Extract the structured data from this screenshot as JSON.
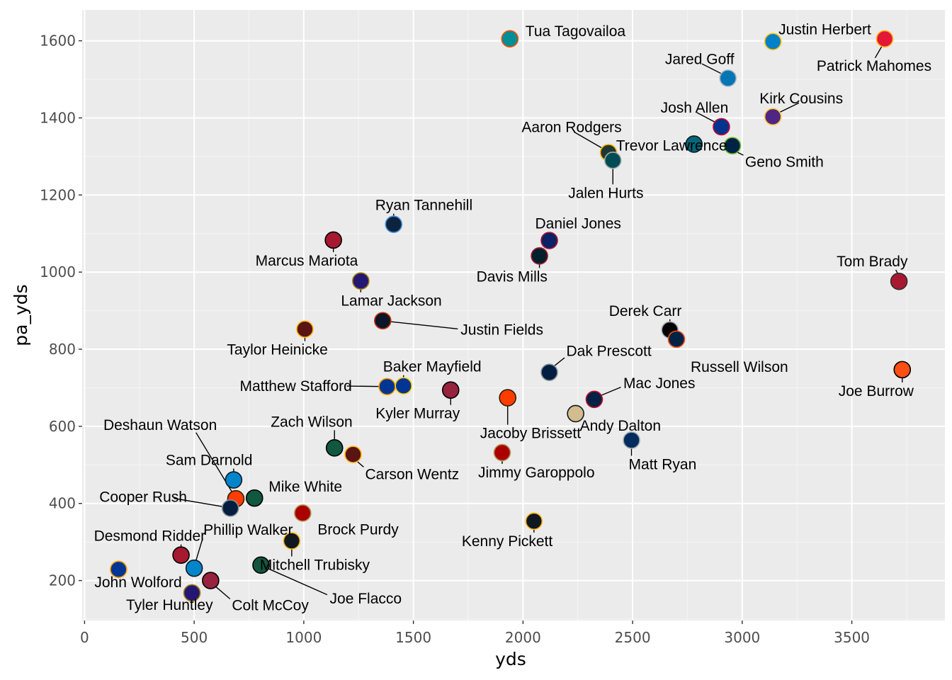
{
  "chart_data": {
    "type": "scatter",
    "xlabel": "yds",
    "ylabel": "pa_yds",
    "xlim": [
      0,
      3800
    ],
    "ylim": [
      100,
      1680
    ],
    "x_ticks": [
      0,
      500,
      1000,
      1500,
      2000,
      2500,
      3000,
      3500
    ],
    "y_ticks": [
      200,
      400,
      600,
      800,
      1000,
      1200,
      1400,
      1600
    ],
    "grid": true,
    "legend": "none",
    "background": "#ebebeb",
    "points": [
      {
        "name": "Tua Tagovailoa",
        "x": 1940,
        "y": 1605,
        "color": "#008E97",
        "edge": "#FC4C02"
      },
      {
        "name": "Justin Herbert",
        "x": 3140,
        "y": 1598,
        "color": "#0080C6",
        "edge": "#FFC20E"
      },
      {
        "name": "Patrick Mahomes",
        "x": 3650,
        "y": 1605,
        "color": "#E31837",
        "edge": "#FFB81C"
      },
      {
        "name": "Jared Goff",
        "x": 2935,
        "y": 1503,
        "color": "#0076B6",
        "edge": "#B0B7BC"
      },
      {
        "name": "Kirk Cousins",
        "x": 3140,
        "y": 1403,
        "color": "#4F2683",
        "edge": "#FFC62F"
      },
      {
        "name": "Josh Allen",
        "x": 2905,
        "y": 1377,
        "color": "#00338D",
        "edge": "#C60C30"
      },
      {
        "name": "Aaron Rodgers",
        "x": 2390,
        "y": 1310,
        "color": "#203731",
        "edge": "#FFB612"
      },
      {
        "name": "Trevor Lawrence",
        "x": 2780,
        "y": 1332,
        "color": "#006778",
        "edge": "#101820"
      },
      {
        "name": "Geno Smith",
        "x": 2955,
        "y": 1328,
        "color": "#002244",
        "edge": "#69BE28"
      },
      {
        "name": "Jalen Hurts",
        "x": 2410,
        "y": 1290,
        "color": "#004C54",
        "edge": "#A5ACAF"
      },
      {
        "name": "Ryan Tannehill",
        "x": 1410,
        "y": 1124,
        "color": "#0C2340",
        "edge": "#4B92DB"
      },
      {
        "name": "Daniel Jones",
        "x": 2120,
        "y": 1082,
        "color": "#0B2265",
        "edge": "#A71930"
      },
      {
        "name": "Marcus Mariota",
        "x": 1135,
        "y": 1083,
        "color": "#A71930",
        "edge": "#000000"
      },
      {
        "name": "Davis Mills",
        "x": 2075,
        "y": 1042,
        "color": "#03202F",
        "edge": "#A71930"
      },
      {
        "name": "Tom Brady",
        "x": 3715,
        "y": 976,
        "color": "#A71930",
        "edge": "#322F2B"
      },
      {
        "name": "Lamar Jackson",
        "x": 1260,
        "y": 977,
        "color": "#241773",
        "edge": "#9E7C0C"
      },
      {
        "name": "Justin Fields",
        "x": 1360,
        "y": 874,
        "color": "#0B162A",
        "edge": "#C83803"
      },
      {
        "name": "Taylor Heinicke",
        "x": 1005,
        "y": 852,
        "color": "#5A1414",
        "edge": "#FFB612"
      },
      {
        "name": "Derek Carr",
        "x": 2670,
        "y": 850,
        "color": "#000000",
        "edge": "#A5ACAF"
      },
      {
        "name": "Russell Wilson",
        "x": 2700,
        "y": 826,
        "color": "#002244",
        "edge": "#FB4F14"
      },
      {
        "name": "Joe Burrow",
        "x": 3730,
        "y": 747,
        "color": "#FB4F14",
        "edge": "#000000"
      },
      {
        "name": "Dak Prescott",
        "x": 2120,
        "y": 740,
        "color": "#041E42",
        "edge": "#869397"
      },
      {
        "name": "Matthew Stafford",
        "x": 1380,
        "y": 703,
        "color": "#003594",
        "edge": "#FFA300"
      },
      {
        "name": "Baker Mayfield",
        "x": 1455,
        "y": 705,
        "color": "#003594",
        "edge": "#FFD100"
      },
      {
        "name": "Kyler Murray",
        "x": 1670,
        "y": 694,
        "color": "#97233F",
        "edge": "#000000"
      },
      {
        "name": "Jacoby Brissett",
        "x": 1930,
        "y": 674,
        "color": "#FF3C00",
        "edge": "#311D00"
      },
      {
        "name": "Mac Jones",
        "x": 2325,
        "y": 670,
        "color": "#002244",
        "edge": "#C60C30"
      },
      {
        "name": "Andy Dalton",
        "x": 2240,
        "y": 633,
        "color": "#D3BC8D",
        "edge": "#101820"
      },
      {
        "name": "Matt Ryan",
        "x": 2495,
        "y": 564,
        "color": "#002C5F",
        "edge": "#A2AAAD"
      },
      {
        "name": "Zach Wilson",
        "x": 1140,
        "y": 544,
        "color": "#125740",
        "edge": "#000000"
      },
      {
        "name": "Carson Wentz",
        "x": 1225,
        "y": 527,
        "color": "#5A1414",
        "edge": "#FFB612"
      },
      {
        "name": "Jimmy Garoppolo",
        "x": 1905,
        "y": 532,
        "color": "#AA0000",
        "edge": "#B3995D"
      },
      {
        "name": "Sam Darnold",
        "x": 680,
        "y": 461,
        "color": "#0085CA",
        "edge": "#101820"
      },
      {
        "name": "Deshaun Watson",
        "x": 690,
        "y": 412,
        "color": "#FF3C00",
        "edge": "#311D00"
      },
      {
        "name": "Mike White",
        "x": 775,
        "y": 414,
        "color": "#125740",
        "edge": "#000000"
      },
      {
        "name": "Cooper Rush",
        "x": 665,
        "y": 388,
        "color": "#041E42",
        "edge": "#869397"
      },
      {
        "name": "Brock Purdy",
        "x": 995,
        "y": 375,
        "color": "#AA0000",
        "edge": "#B3995D"
      },
      {
        "name": "Kenny Pickett",
        "x": 2050,
        "y": 354,
        "color": "#101820",
        "edge": "#FFB612"
      },
      {
        "name": "Mitchell Trubisky",
        "x": 945,
        "y": 303,
        "color": "#101820",
        "edge": "#FFB612"
      },
      {
        "name": "Desmond Ridder",
        "x": 440,
        "y": 266,
        "color": "#A71930",
        "edge": "#000000"
      },
      {
        "name": "Joe Flacco",
        "x": 805,
        "y": 240,
        "color": "#125740",
        "edge": "#000000"
      },
      {
        "name": "Phillip Walker",
        "x": 500,
        "y": 232,
        "color": "#0085CA",
        "edge": "#101820"
      },
      {
        "name": "John Wolford",
        "x": 155,
        "y": 229,
        "color": "#003594",
        "edge": "#FFA300"
      },
      {
        "name": "Colt McCoy",
        "x": 575,
        "y": 200,
        "color": "#97233F",
        "edge": "#000000"
      },
      {
        "name": "Tyler Huntley",
        "x": 490,
        "y": 168,
        "color": "#241773",
        "edge": "#9E7C0C"
      }
    ]
  }
}
